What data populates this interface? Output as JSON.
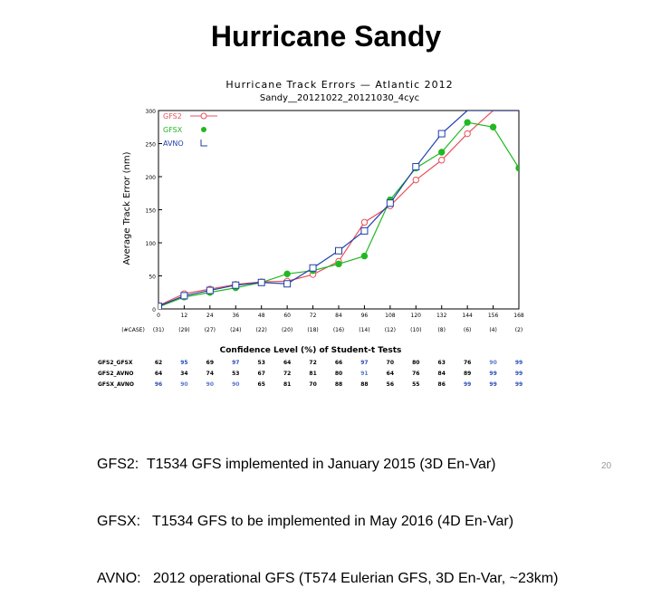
{
  "slide_title": "Hurricane Sandy",
  "footer": {
    "lines": [
      "GFS2:  T1534 GFS implemented in January 2015 (3D En-Var)",
      "GFSX:   T1534 GFS to be implemented in May 2016 (4D En-Var)",
      "AVNO:   2012 operational GFS (T574 Eulerian GFS, 3D En-Var, ~23km)"
    ],
    "page_number": "20"
  },
  "colors": {
    "gfs2": "#e8505b",
    "gfsx": "#22b822",
    "avno": "#1f3fa8",
    "level_blue": "#2a4db8"
  },
  "chart_data": {
    "type": "line",
    "title": "Hurricane Track Errors — Atlantic 2012",
    "subtitle": "Sandy__20121022_20121030_4cyc",
    "xlabel": "",
    "ylabel": "Average Track Error (nm)",
    "ylim": [
      0,
      300
    ],
    "yticks": [
      "0",
      "50",
      "100",
      "150",
      "200",
      "250",
      "300"
    ],
    "x": [
      0,
      12,
      24,
      36,
      48,
      60,
      72,
      84,
      96,
      108,
      120,
      132,
      144,
      156,
      168
    ],
    "xtick_labels": [
      "0",
      "12",
      "24",
      "36",
      "48",
      "60",
      "72",
      "84",
      "96",
      "108",
      "120",
      "132",
      "144",
      "156",
      "168"
    ],
    "sample_counts": [
      "(#CASE)",
      "(31)",
      "(29)",
      "(27)",
      "(24)",
      "(22)",
      "(20)",
      "(18)",
      "(16)",
      "(14)",
      "(12)",
      "(10)",
      "(8)",
      "(6)",
      "(4)",
      "(2)"
    ],
    "series": [
      {
        "name": "GFS2",
        "marker": "open-circle",
        "values": [
          5,
          23,
          30,
          37,
          41,
          42,
          52,
          72,
          131,
          156,
          195,
          225,
          265,
          300,
          300
        ]
      },
      {
        "name": "GFSX",
        "marker": "filled-circle",
        "values": [
          3,
          18,
          25,
          32,
          40,
          53,
          58,
          68,
          80,
          165,
          213,
          237,
          282,
          275,
          213
        ]
      },
      {
        "name": "AVNO",
        "marker": "open-square",
        "values": [
          4,
          20,
          28,
          36,
          40,
          38,
          62,
          88,
          118,
          160,
          215,
          265,
          300,
          300,
          300
        ]
      }
    ],
    "confidence_table": {
      "title": "Confidence Level (%) of Student-t Tests",
      "rows": [
        {
          "label": "GFS2_GFSX",
          "values": [
            "62",
            "95",
            "69",
            "97",
            "53",
            "64",
            "72",
            "66",
            "97",
            "70",
            "80",
            "63",
            "76",
            "90",
            "99"
          ]
        },
        {
          "label": "GFS2_AVNO",
          "values": [
            "64",
            "34",
            "74",
            "53",
            "67",
            "72",
            "81",
            "80",
            "91",
            "64",
            "76",
            "84",
            "89",
            "99",
            "99"
          ]
        },
        {
          "label": "GFSX_AVNO",
          "values": [
            "96",
            "90",
            "90",
            "90",
            "65",
            "81",
            "70",
            "88",
            "88",
            "56",
            "55",
            "86",
            "99",
            "99",
            "99"
          ]
        }
      ]
    }
  }
}
